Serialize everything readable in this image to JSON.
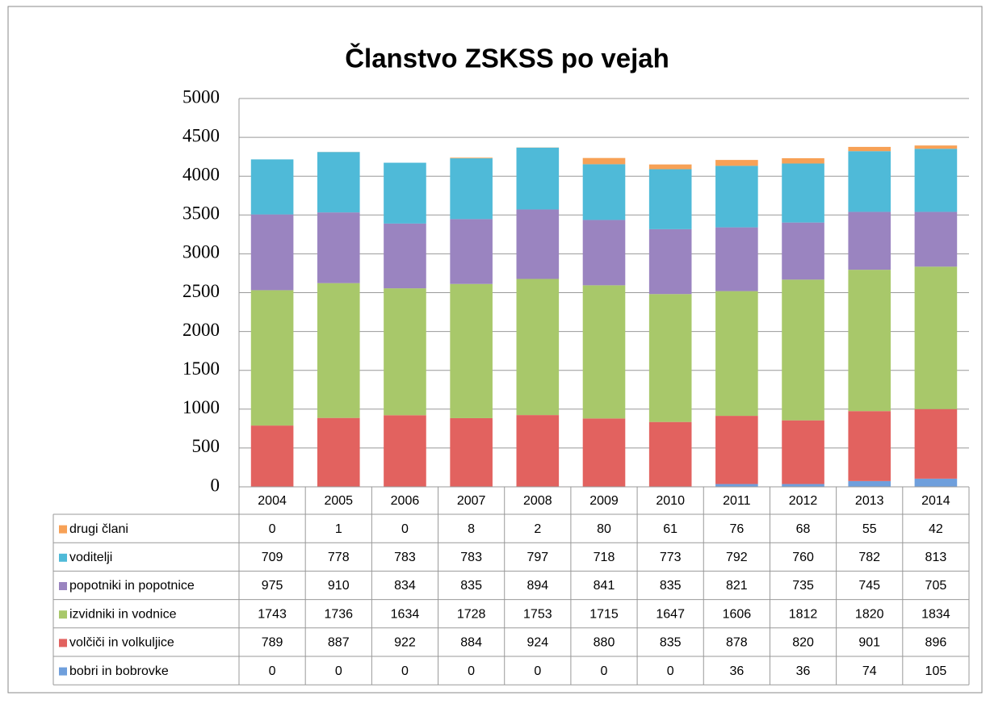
{
  "chart_data": {
    "type": "bar",
    "stacked": true,
    "title": "Članstvo ZSKSS po vejah",
    "categories": [
      "2004",
      "2005",
      "2006",
      "2007",
      "2008",
      "2009",
      "2010",
      "2011",
      "2012",
      "2013",
      "2014"
    ],
    "series": [
      {
        "name": "bobri in bobrovke",
        "color": "#6f9fdc",
        "values": [
          0,
          0,
          0,
          0,
          0,
          0,
          0,
          36,
          36,
          74,
          105
        ]
      },
      {
        "name": "volčiči in volkuljice",
        "color": "#e2625f",
        "values": [
          789,
          887,
          922,
          884,
          924,
          880,
          835,
          878,
          820,
          901,
          896
        ]
      },
      {
        "name": "izvidniki in vodnice",
        "color": "#a8c86a",
        "values": [
          1743,
          1736,
          1634,
          1728,
          1753,
          1715,
          1647,
          1606,
          1812,
          1820,
          1834
        ]
      },
      {
        "name": "popotniki in popotnice",
        "color": "#9a84c0",
        "values": [
          975,
          910,
          834,
          835,
          894,
          841,
          835,
          821,
          735,
          745,
          705
        ]
      },
      {
        "name": "voditelji",
        "color": "#4fbad8",
        "values": [
          709,
          778,
          783,
          783,
          797,
          718,
          773,
          792,
          760,
          782,
          813
        ]
      },
      {
        "name": "drugi člani",
        "color": "#f7a156",
        "values": [
          0,
          1,
          0,
          8,
          2,
          80,
          61,
          76,
          68,
          55,
          42
        ]
      }
    ],
    "ylim": [
      0,
      5000
    ],
    "yticks": [
      0,
      500,
      1000,
      1500,
      2000,
      2500,
      3000,
      3500,
      4000,
      4500,
      5000
    ],
    "grid": true
  }
}
